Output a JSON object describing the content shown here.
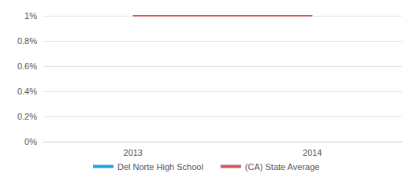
{
  "chart_data": {
    "type": "line",
    "categories": [
      "2013",
      "2014"
    ],
    "series": [
      {
        "name": "Del Norte High School",
        "color": "#2a9ed8",
        "values": [
          1,
          1
        ]
      },
      {
        "name": "(CA) State Average",
        "color": "#d0585b",
        "values": [
          1,
          1
        ]
      }
    ],
    "ylim": [
      0,
      1
    ],
    "yticks": [
      {
        "value": 0,
        "label": "0%"
      },
      {
        "value": 0.2,
        "label": "0.2%"
      },
      {
        "value": 0.4,
        "label": "0.4%"
      },
      {
        "value": 0.6,
        "label": "0.6%"
      },
      {
        "value": 0.8,
        "label": "0.8%"
      },
      {
        "value": 1,
        "label": "1%"
      }
    ],
    "grid": true,
    "legend": "bottom"
  }
}
